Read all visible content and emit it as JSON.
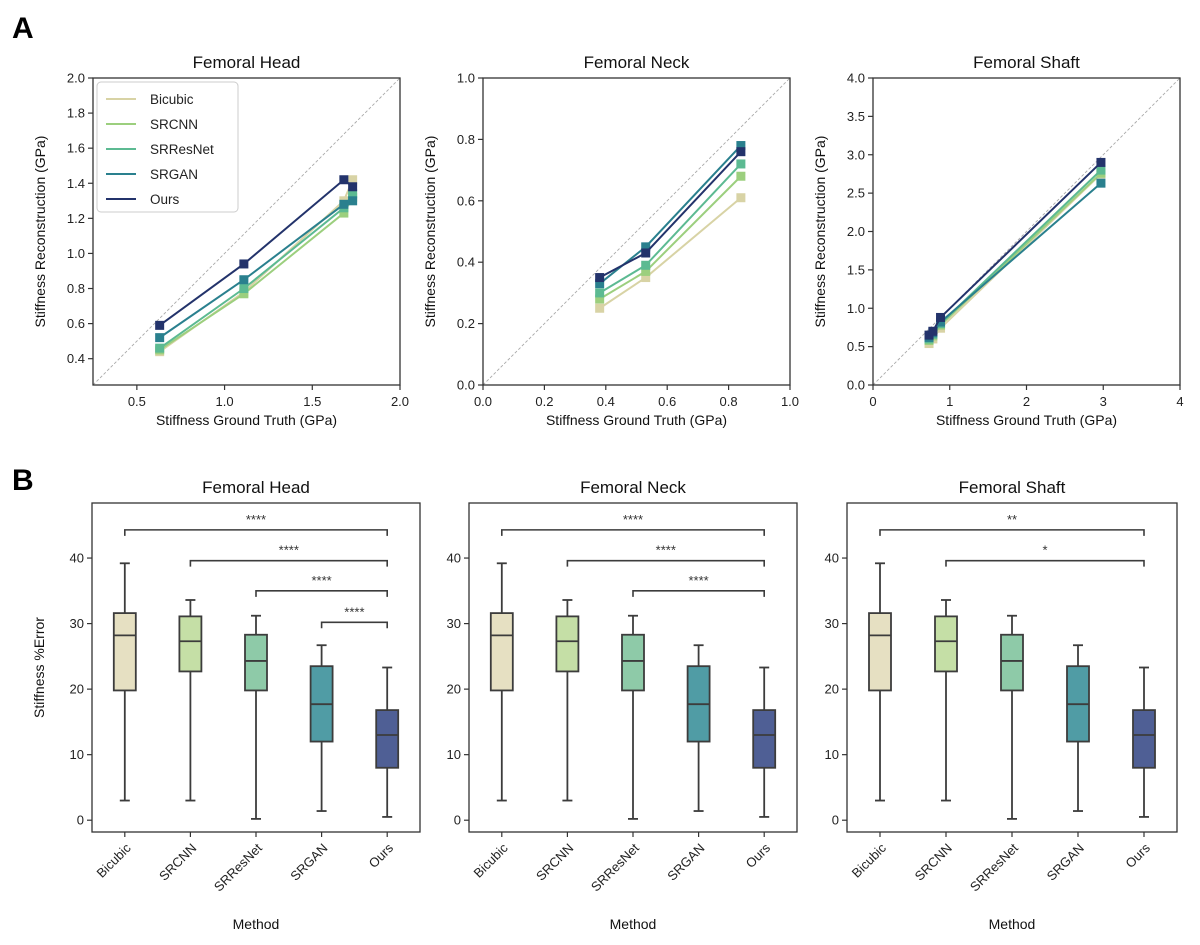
{
  "panel_labels": [
    "A",
    "B"
  ],
  "colors": {
    "Bicubic": {
      "line": "#d8d3a5",
      "box": "#e6e0c2"
    },
    "SRCNN": {
      "line": "#9ccf7e",
      "box": "#c5dfa6"
    },
    "SRResNet": {
      "line": "#5cba92",
      "box": "#8ecaa8"
    },
    "SRGAN": {
      "line": "#2a808e",
      "box": "#509ca5"
    },
    "Ours": {
      "line": "#23336b",
      "box": "#4f5f95"
    }
  },
  "chart_data": [
    {
      "type": "line",
      "title": "Femoral Head",
      "xlabel": "Stiffness Ground Truth (GPa)",
      "ylabel": "Stiffness Reconstruction (GPa)",
      "xlim": [
        0.25,
        2.0
      ],
      "ylim": [
        0.25,
        2.0
      ],
      "xticks": [
        "0.5",
        "1.0",
        "1.5",
        "2.0"
      ],
      "yticks": [
        "0.4",
        "0.6",
        "0.8",
        "1.0",
        "1.2",
        "1.4",
        "1.6",
        "1.8",
        "2.0"
      ],
      "reference_line": "y = x (dashed)",
      "legend": "top-left",
      "legend_entries": [
        "Bicubic",
        "SRCNN",
        "SRResNet",
        "SRGAN",
        "Ours"
      ],
      "x": [
        0.63,
        1.11,
        1.68,
        1.73
      ],
      "series": [
        {
          "name": "Bicubic",
          "values": [
            0.44,
            0.78,
            1.3,
            1.42
          ]
        },
        {
          "name": "SRCNN",
          "values": [
            0.45,
            0.77,
            1.23,
            1.32
          ]
        },
        {
          "name": "SRResNet",
          "values": [
            0.46,
            0.8,
            1.26,
            1.34
          ]
        },
        {
          "name": "SRGAN",
          "values": [
            0.52,
            0.85,
            1.28,
            1.3
          ]
        },
        {
          "name": "Ours",
          "values": [
            0.59,
            0.94,
            1.42,
            1.38
          ]
        }
      ]
    },
    {
      "type": "line",
      "title": "Femoral Neck",
      "xlabel": "Stiffness Ground Truth (GPa)",
      "ylabel": "Stiffness Reconstruction (GPa)",
      "xlim": [
        0.0,
        1.0
      ],
      "ylim": [
        0.0,
        1.0
      ],
      "xticks": [
        "0.0",
        "0.2",
        "0.4",
        "0.6",
        "0.8",
        "1.0"
      ],
      "yticks": [
        "0.0",
        "0.2",
        "0.4",
        "0.6",
        "0.8",
        "1.0"
      ],
      "reference_line": "y = x (dashed)",
      "x": [
        0.38,
        0.53,
        0.84
      ],
      "series": [
        {
          "name": "Bicubic",
          "values": [
            0.25,
            0.35,
            0.61
          ]
        },
        {
          "name": "SRCNN",
          "values": [
            0.28,
            0.37,
            0.68
          ]
        },
        {
          "name": "SRResNet",
          "values": [
            0.3,
            0.39,
            0.72
          ]
        },
        {
          "name": "SRGAN",
          "values": [
            0.33,
            0.45,
            0.78
          ]
        },
        {
          "name": "Ours",
          "values": [
            0.35,
            0.43,
            0.76
          ]
        }
      ]
    },
    {
      "type": "line",
      "title": "Femoral Shaft",
      "xlabel": "Stiffness Ground Truth (GPa)",
      "ylabel": "Stiffness Reconstruction (GPa)",
      "xlim": [
        0,
        4
      ],
      "ylim": [
        0.0,
        4.0
      ],
      "xticks": [
        "0",
        "1",
        "2",
        "3",
        "4"
      ],
      "yticks": [
        "0.0",
        "0.5",
        "1.0",
        "1.5",
        "2.0",
        "2.5",
        "3.0",
        "3.5",
        "4.0"
      ],
      "reference_line": "y = x (dashed)",
      "x": [
        0.73,
        0.78,
        0.88,
        2.97
      ],
      "series": [
        {
          "name": "Bicubic",
          "values": [
            0.54,
            0.6,
            0.74,
            2.75
          ]
        },
        {
          "name": "SRCNN",
          "values": [
            0.58,
            0.64,
            0.78,
            2.76
          ]
        },
        {
          "name": "SRResNet",
          "values": [
            0.6,
            0.66,
            0.8,
            2.8
          ]
        },
        {
          "name": "SRGAN",
          "values": [
            0.62,
            0.68,
            0.82,
            2.63
          ]
        },
        {
          "name": "Ours",
          "values": [
            0.65,
            0.7,
            0.88,
            2.9
          ]
        }
      ]
    },
    {
      "type": "box",
      "title": "Femoral Head",
      "xlabel": "Method",
      "ylabel": "Stiffness %Error",
      "ylim": [
        -1.8,
        48.4
      ],
      "yticks": [
        "0",
        "10",
        "20",
        "30",
        "40"
      ],
      "categories": [
        "Bicubic",
        "SRCNN",
        "SRResNet",
        "SRGAN",
        "Ours"
      ],
      "boxes": [
        {
          "min": 3.0,
          "q1": 19.8,
          "median": 28.2,
          "q3": 31.6,
          "max": 39.2
        },
        {
          "min": 3.0,
          "q1": 22.7,
          "median": 27.3,
          "q3": 31.1,
          "max": 33.6
        },
        {
          "min": 0.2,
          "q1": 19.8,
          "median": 24.3,
          "q3": 28.3,
          "max": 31.2
        },
        {
          "min": 1.4,
          "q1": 12.0,
          "median": 17.7,
          "q3": 23.5,
          "max": 26.7
        },
        {
          "min": 0.5,
          "q1": 8.0,
          "median": 13.0,
          "q3": 16.8,
          "max": 23.3
        }
      ],
      "brackets": [
        {
          "from": "Bicubic",
          "to": "Ours",
          "label": "****",
          "y": 44.3
        },
        {
          "from": "SRCNN",
          "to": "Ours",
          "label": "****",
          "y": 39.6
        },
        {
          "from": "SRResNet",
          "to": "Ours",
          "label": "****",
          "y": 35.0
        },
        {
          "from": "SRGAN",
          "to": "Ours",
          "label": "****",
          "y": 30.2
        }
      ]
    },
    {
      "type": "box",
      "title": "Femoral Neck",
      "xlabel": "Method",
      "ylabel": "",
      "ylim": [
        -1.8,
        48.4
      ],
      "yticks": [
        "0",
        "10",
        "20",
        "30",
        "40"
      ],
      "categories": [
        "Bicubic",
        "SRCNN",
        "SRResNet",
        "SRGAN",
        "Ours"
      ],
      "boxes": [
        {
          "min": 3.0,
          "q1": 19.8,
          "median": 28.2,
          "q3": 31.6,
          "max": 39.2
        },
        {
          "min": 3.0,
          "q1": 22.7,
          "median": 27.3,
          "q3": 31.1,
          "max": 33.6
        },
        {
          "min": 0.2,
          "q1": 19.8,
          "median": 24.3,
          "q3": 28.3,
          "max": 31.2
        },
        {
          "min": 1.4,
          "q1": 12.0,
          "median": 17.7,
          "q3": 23.5,
          "max": 26.7
        },
        {
          "min": 0.5,
          "q1": 8.0,
          "median": 13.0,
          "q3": 16.8,
          "max": 23.3
        }
      ],
      "brackets": [
        {
          "from": "Bicubic",
          "to": "Ours",
          "label": "****",
          "y": 44.3
        },
        {
          "from": "SRCNN",
          "to": "Ours",
          "label": "****",
          "y": 39.6
        },
        {
          "from": "SRResNet",
          "to": "Ours",
          "label": "****",
          "y": 35.0
        }
      ]
    },
    {
      "type": "box",
      "title": "Femoral Shaft",
      "xlabel": "Method",
      "ylabel": "",
      "ylim": [
        -1.8,
        48.4
      ],
      "yticks": [
        "0",
        "10",
        "20",
        "30",
        "40"
      ],
      "categories": [
        "Bicubic",
        "SRCNN",
        "SRResNet",
        "SRGAN",
        "Ours"
      ],
      "boxes": [
        {
          "min": 3.0,
          "q1": 19.8,
          "median": 28.2,
          "q3": 31.6,
          "max": 39.2
        },
        {
          "min": 3.0,
          "q1": 22.7,
          "median": 27.3,
          "q3": 31.1,
          "max": 33.6
        },
        {
          "min": 0.2,
          "q1": 19.8,
          "median": 24.3,
          "q3": 28.3,
          "max": 31.2
        },
        {
          "min": 1.4,
          "q1": 12.0,
          "median": 17.7,
          "q3": 23.5,
          "max": 26.7
        },
        {
          "min": 0.5,
          "q1": 8.0,
          "median": 13.0,
          "q3": 16.8,
          "max": 23.3
        }
      ],
      "brackets": [
        {
          "from": "Bicubic",
          "to": "Ours",
          "label": "**",
          "y": 44.3
        },
        {
          "from": "SRCNN",
          "to": "Ours",
          "label": "*",
          "y": 39.6
        }
      ]
    }
  ]
}
